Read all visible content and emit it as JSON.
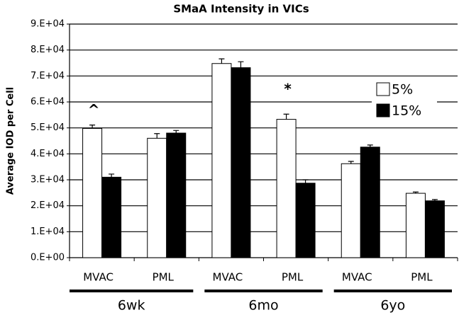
{
  "chart_data": {
    "type": "bar",
    "title": "SMaA Intensity in VICs",
    "y_label": "Average IOD per Cell",
    "categories": [
      "MVAC",
      "PML",
      "MVAC",
      "PML",
      "MVAC",
      "PML"
    ],
    "groups": [
      "6wk",
      "6mo",
      "6yo"
    ],
    "series": [
      {
        "name": "5%",
        "color": "#ffffff",
        "values": [
          49800,
          46000,
          74800,
          53300,
          36200,
          24800
        ],
        "errors": [
          1300,
          1800,
          1800,
          2000,
          900,
          500
        ]
      },
      {
        "name": "15%",
        "color": "#000000",
        "values": [
          31000,
          48000,
          73200,
          28700,
          42600,
          21900
        ],
        "errors": [
          1200,
          1000,
          2300,
          1300,
          800,
          500
        ]
      }
    ],
    "annotations": [
      {
        "text": "^",
        "category": 0
      },
      {
        "text": "*",
        "category": 3
      }
    ],
    "ylim": [
      0,
      90000
    ],
    "yticks": [
      {
        "value": 0,
        "label": "0.E+00"
      },
      {
        "value": 10000,
        "label": "1.E+04"
      },
      {
        "value": 20000,
        "label": "2.E+04"
      },
      {
        "value": 30000,
        "label": "3.E+04"
      },
      {
        "value": 40000,
        "label": "4.E+04"
      },
      {
        "value": 50000,
        "label": "5.E+04"
      },
      {
        "value": 60000,
        "label": "6.E+04"
      },
      {
        "value": 70000,
        "label": "7.E+04"
      },
      {
        "value": 80000,
        "label": "8.E+04"
      },
      {
        "value": 90000,
        "label": "9.E+04"
      }
    ],
    "grid": true
  }
}
